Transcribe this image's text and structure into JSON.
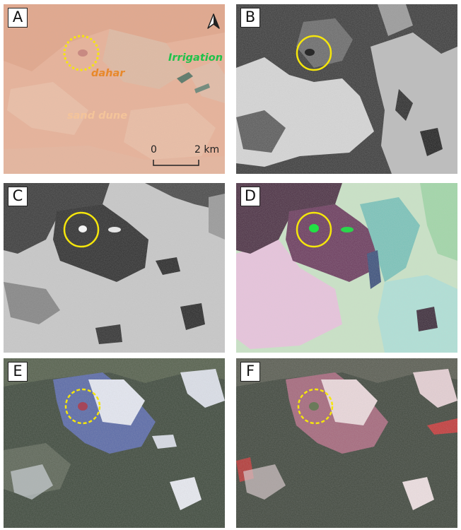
{
  "panels": [
    {
      "id": "A",
      "label": "A"
    },
    {
      "id": "B",
      "label": "B"
    },
    {
      "id": "C",
      "label": "C"
    },
    {
      "id": "D",
      "label": "D"
    },
    {
      "id": "E",
      "label": "E"
    },
    {
      "id": "F",
      "label": "F"
    }
  ],
  "annotations": {
    "dahar": "dahar",
    "sand_dune": "sand dune",
    "irrigation": "Irrigation"
  },
  "scale_bar": {
    "start": "0",
    "end": "2 km"
  },
  "icons": {
    "north_arrow": "north-arrow-icon"
  },
  "colors": {
    "highlight_circle": "#f5e60c",
    "dahar_text": "#e8882a",
    "sand_dune_text": "#f4c49a",
    "irrigation_text": "#1fc24a"
  }
}
